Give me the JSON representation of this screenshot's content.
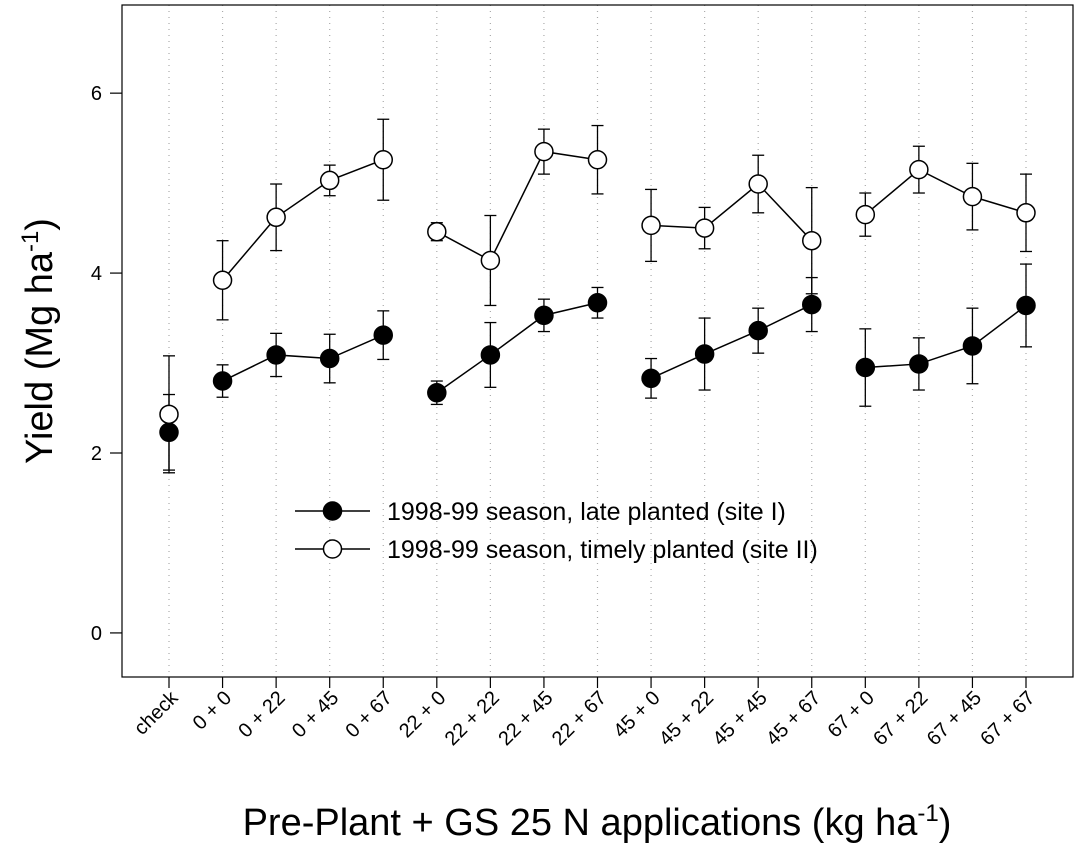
{
  "chart_data": {
    "type": "line",
    "ylabel": [
      "Yield (Mg ha",
      "-1",
      ")"
    ],
    "xlabel": [
      "Pre-Plant + GS 25 N applications (kg ha",
      "-1",
      ")"
    ],
    "categories": [
      "check",
      "0 + 0",
      "0 + 22",
      "0 + 45",
      "0 + 67",
      "22 + 0",
      "22 + 22",
      "22 + 45",
      "22 + 67",
      "45 + 0",
      "45 + 22",
      "45 + 45",
      "45 + 67",
      "67 + 0",
      "67 + 22",
      "67 + 45",
      "67 + 67"
    ],
    "series": [
      {
        "name": "1998-99 season, late planted (site I)",
        "color": "#000000",
        "values": [
          2.23,
          2.8,
          3.09,
          3.05,
          3.31,
          2.67,
          3.09,
          3.53,
          3.67,
          2.83,
          3.1,
          3.36,
          3.65,
          2.95,
          2.99,
          3.19,
          3.64
        ],
        "errors": [
          0.42,
          0.18,
          0.24,
          0.27,
          0.27,
          0.13,
          0.36,
          0.18,
          0.17,
          0.22,
          0.4,
          0.25,
          0.3,
          0.43,
          0.29,
          0.42,
          0.46
        ]
      },
      {
        "name": "1998-99 season, timely planted (site II)",
        "color": "#ffffff",
        "values": [
          2.43,
          3.92,
          4.62,
          5.03,
          5.26,
          4.46,
          4.14,
          5.35,
          5.26,
          4.53,
          4.5,
          4.99,
          4.36,
          4.65,
          5.15,
          4.85,
          4.67
        ],
        "errors": [
          0.65,
          0.44,
          0.37,
          0.17,
          0.45,
          0.1,
          0.5,
          0.25,
          0.38,
          0.4,
          0.23,
          0.32,
          0.59,
          0.24,
          0.26,
          0.37,
          0.43
        ]
      }
    ],
    "ylim": [
      -0.49,
      6.98
    ],
    "yticks": [
      0,
      2,
      4,
      6
    ],
    "grid": true,
    "legend": "center"
  }
}
